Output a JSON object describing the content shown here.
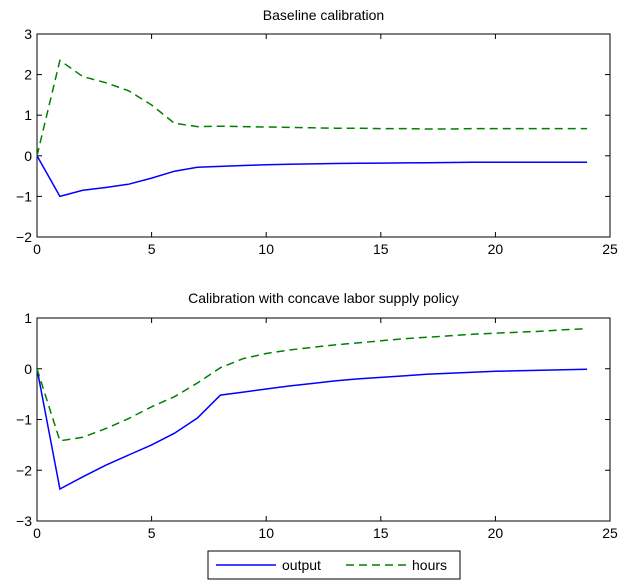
{
  "chart_data": [
    {
      "type": "line",
      "title": "Baseline calibration",
      "xlabel": "",
      "ylabel": "",
      "xlim": [
        0,
        25
      ],
      "ylim": [
        -2,
        3
      ],
      "xticks": [
        0,
        5,
        10,
        15,
        20,
        25
      ],
      "yticks": [
        -2,
        -1,
        0,
        1,
        2,
        3
      ],
      "grid": false,
      "series": [
        {
          "name": "output",
          "color": "#0000ff",
          "style": "solid",
          "x": [
            0,
            1,
            2,
            3,
            4,
            5,
            6,
            7,
            8,
            9,
            10,
            11,
            12,
            13,
            14,
            15,
            16,
            17,
            18,
            19,
            20,
            21,
            22,
            23,
            24
          ],
          "y": [
            0,
            -1.0,
            -0.85,
            -0.78,
            -0.7,
            -0.55,
            -0.38,
            -0.28,
            -0.26,
            -0.24,
            -0.22,
            -0.21,
            -0.2,
            -0.19,
            -0.185,
            -0.18,
            -0.175,
            -0.17,
            -0.165,
            -0.16,
            -0.16,
            -0.16,
            -0.16,
            -0.16,
            -0.16
          ]
        },
        {
          "name": "hours",
          "color": "#008000",
          "style": "dashed",
          "x": [
            0,
            1,
            2,
            3,
            4,
            5,
            6,
            7,
            8,
            9,
            10,
            11,
            12,
            13,
            14,
            15,
            16,
            17,
            18,
            19,
            20,
            21,
            22,
            23,
            24
          ],
          "y": [
            0,
            2.35,
            1.95,
            1.8,
            1.6,
            1.25,
            0.8,
            0.72,
            0.73,
            0.72,
            0.71,
            0.7,
            0.69,
            0.68,
            0.68,
            0.67,
            0.67,
            0.66,
            0.66,
            0.67,
            0.67,
            0.67,
            0.67,
            0.67,
            0.67
          ]
        }
      ]
    },
    {
      "type": "line",
      "title": "Calibration with concave labor supply policy",
      "xlabel": "",
      "ylabel": "",
      "xlim": [
        0,
        25
      ],
      "ylim": [
        -3,
        1
      ],
      "xticks": [
        0,
        5,
        10,
        15,
        20,
        25
      ],
      "yticks": [
        -3,
        -2,
        -1,
        0,
        1
      ],
      "grid": false,
      "series": [
        {
          "name": "output",
          "color": "#0000ff",
          "style": "solid",
          "x": [
            0,
            1,
            2,
            3,
            4,
            5,
            6,
            7,
            8,
            9,
            10,
            11,
            12,
            13,
            14,
            15,
            16,
            17,
            18,
            19,
            20,
            21,
            22,
            23,
            24
          ],
          "y": [
            0,
            -2.37,
            -2.13,
            -1.9,
            -1.7,
            -1.5,
            -1.27,
            -0.97,
            -0.52,
            -0.46,
            -0.4,
            -0.34,
            -0.29,
            -0.24,
            -0.2,
            -0.17,
            -0.14,
            -0.11,
            -0.09,
            -0.07,
            -0.05,
            -0.04,
            -0.03,
            -0.02,
            -0.01
          ]
        },
        {
          "name": "hours",
          "color": "#008000",
          "style": "dashed",
          "x": [
            0,
            1,
            2,
            3,
            4,
            5,
            6,
            7,
            8,
            9,
            10,
            11,
            12,
            13,
            14,
            15,
            16,
            17,
            18,
            19,
            20,
            21,
            22,
            23,
            24
          ],
          "y": [
            0,
            -1.42,
            -1.35,
            -1.18,
            -0.98,
            -0.75,
            -0.55,
            -0.28,
            0.02,
            0.2,
            0.3,
            0.37,
            0.42,
            0.47,
            0.51,
            0.55,
            0.59,
            0.62,
            0.65,
            0.68,
            0.7,
            0.72,
            0.74,
            0.77,
            0.79
          ]
        }
      ]
    }
  ],
  "legend": {
    "placement": "bottom-center",
    "entries": [
      {
        "label": "output",
        "color": "#0000ff",
        "style": "solid"
      },
      {
        "label": "hours",
        "color": "#008000",
        "style": "dashed"
      }
    ]
  }
}
